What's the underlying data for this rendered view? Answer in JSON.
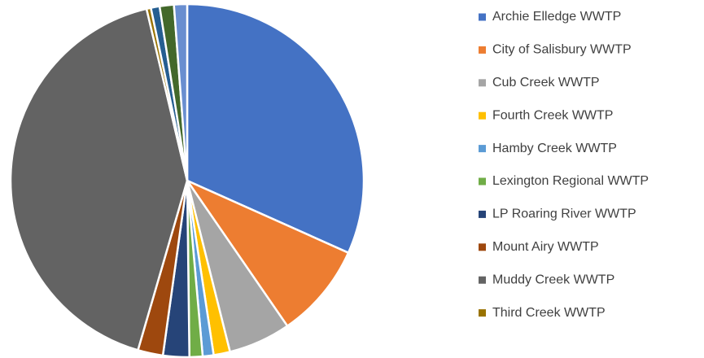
{
  "chart_data": {
    "type": "pie",
    "categories": [
      "Archie Elledge WWTP",
      "City of Salisbury WWTP",
      "Cub Creek WWTP",
      "Fourth Creek WWTP",
      "Hamby Creek WWTP",
      "Lexington Regional WWTP",
      "LP Roaring River WWTP",
      "Mount Airy WWTP",
      "Muddy Creek WWTP",
      "Third Creek WWTP",
      null,
      null,
      null
    ],
    "values": [
      31.7,
      8.7,
      5.7,
      1.5,
      1.0,
      1.2,
      2.4,
      2.3,
      41.8,
      0.4,
      0.8,
      1.3,
      1.2
    ],
    "colors": [
      "#4472c4",
      "#ed7d31",
      "#a5a5a5",
      "#ffc000",
      "#5b9bd5",
      "#70ad47",
      "#264478",
      "#9e480e",
      "#636363",
      "#997300",
      "#255e91",
      "#43682b",
      "#698ed0"
    ],
    "legend": "right"
  }
}
